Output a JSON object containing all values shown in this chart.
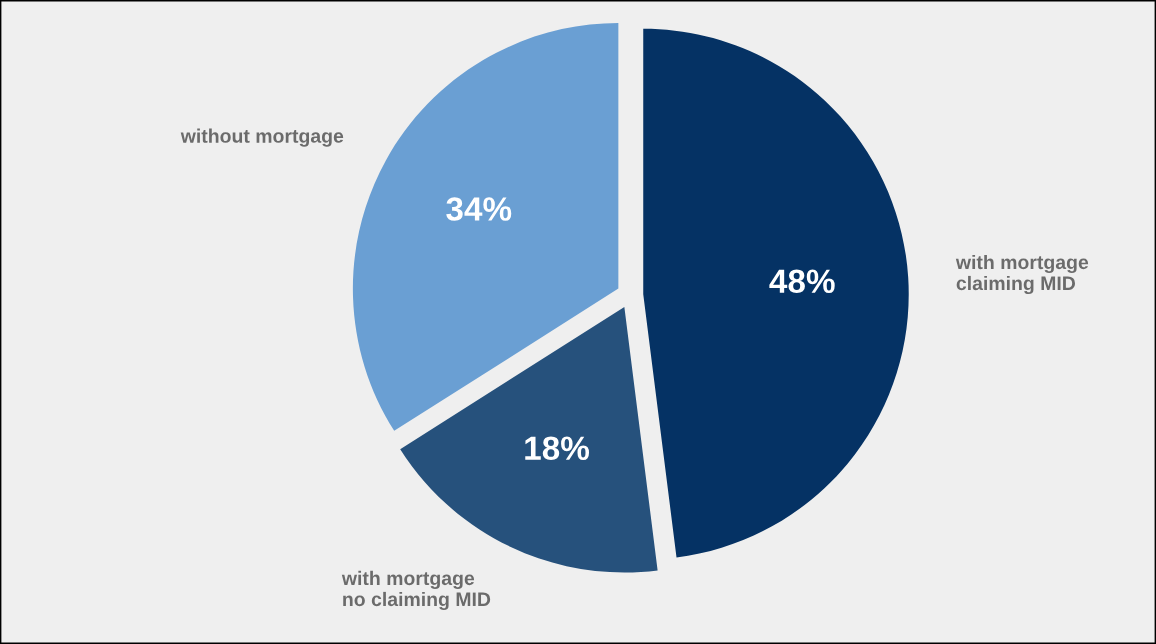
{
  "chart_data": {
    "type": "pie",
    "categories": [
      "with mortgage\nclaiming MID",
      "with mortgage\nno claiming MID",
      "without mortgage"
    ],
    "values": [
      48,
      18,
      34
    ],
    "colors": [
      "#053264",
      "#26517c",
      "#6a9fd3"
    ],
    "value_labels": [
      "48%",
      "18%",
      "34%"
    ]
  }
}
